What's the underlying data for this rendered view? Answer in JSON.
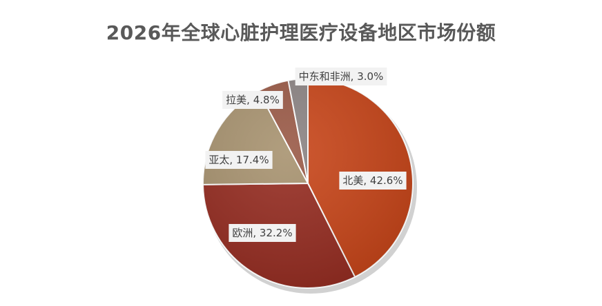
{
  "chart_data": {
    "type": "pie",
    "title": "2026年全球心脏护理医疗设备地区市场份额",
    "slices": [
      {
        "name": "北美",
        "value": 42.6,
        "label": "北美, 42.6%",
        "color": "#c8461a"
      },
      {
        "name": "欧洲",
        "value": 32.2,
        "label": "欧洲, 32.2%",
        "color": "#962d22"
      },
      {
        "name": "亚太",
        "value": 17.4,
        "label": "亚太, 17.4%",
        "color": "#a89370"
      },
      {
        "name": "拉美",
        "value": 4.8,
        "label": "拉美, 4.8%",
        "color": "#9a5a47"
      },
      {
        "name": "中东和非洲",
        "value": 3.0,
        "label": "中东和非洲, 3.0%",
        "color": "#8c8484"
      }
    ]
  }
}
